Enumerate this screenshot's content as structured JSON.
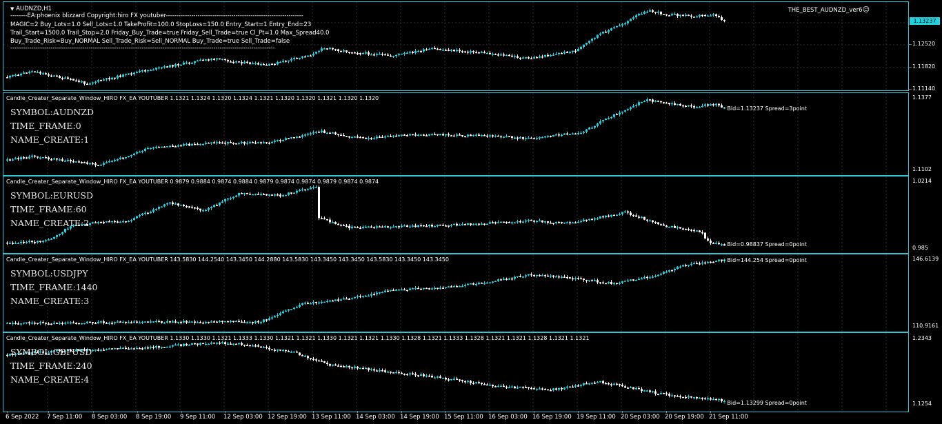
{
  "main_chart": {
    "symbol_title": "AUDNZD,H1",
    "ea_name": "THE_BEST_AUDNZD_ver6",
    "smiley": "☺",
    "info_lines": [
      "--------EA:phoenix blizzard     Copyright:hiro FX youtuber-----------------------------------------------------------------",
      "MAGIC=2   Buy_Lots=1.0   Sell_Lots=1.0   TakeProfit=100.0   StopLoss=150.0   Entry_Start=1   Entry_End=23",
      "Trail_Start=1500.0   Trail_Stop=2.0   Friday_Buy_Trade=true   Friday_Sell_Trade=true   Cl_Pt=1.0   Max_Spread40.0",
      "Buy_Trade_Risk=Buy_NORMAL   Sell_Trade_Risk=Sell_NORMAL   Buy_Trade=true   Sell_Trade=false",
      "-----------------------------------------------------------------------------------------------------------------------------"
    ],
    "price_labels": [
      "1.13237",
      "1.12520",
      "1.11820",
      "1.11140"
    ],
    "current_price": "1.13237",
    "up_color": "#1ed3e2",
    "down_color": "#ffffff",
    "accent_color": "#2fc5d6"
  },
  "sub_windows": [
    {
      "header": "Candle_Creater_Separate_Window_HIRO FX_EA YOUTUBER 1.1321 1.1324 1.1320 1.1324 1.1321 1.1320 1.1320 1.1321 1.1320 1.1320",
      "symbol_label": "SYMBOL:AUDNZD",
      "timeframe_label": "TIME_FRAME:0",
      "name_create_label": "NAME_CREATE:1",
      "bid_text": "Bid=1.13237 Spread=3point",
      "price_max": "1.1377",
      "price_min": "1.1102"
    },
    {
      "header": "Candle_Creater_Separate_Window_HIRO FX_EA YOUTUBER 0.9879 0.9884 0.9874 0.9884 0.9879 0.9874 0.9874 0.9879 0.9874 0.9874",
      "symbol_label": "SYMBOL:EURUSD",
      "timeframe_label": "TIME_FRAME:60",
      "name_create_label": "NAME_CREATE:2",
      "bid_text": "Bid=0.98837 Spread=0point",
      "price_max": "1.0214",
      "price_min": "0.985"
    },
    {
      "header": "Candle_Creater_Separate_Window_HIRO FX_EA YOUTUBER 143.5830 144.2540 143.3450 144.2880 143.5830 143.3450 143.3450 143.5830 143.3450 143.3450",
      "symbol_label": "SYMBOL:USDJPY",
      "timeframe_label": "TIME_FRAME:1440",
      "name_create_label": "NAME_CREATE:3",
      "bid_text": "Bid=144.254 Spread=0point",
      "price_max": "146.6139",
      "price_min": "110.9161"
    },
    {
      "header": "Candle_Creater_Separate_Window_HIRO FX_EA YOUTUBER 1.1330 1.1330 1.1321 1.1333 1.1330 1.1321 1.1321 1.1330 1.1321 1.1321 1.1330 1.1328 1.1321 1.1333 1.1328 1.1321 1.1321 1.1328 1.1321 1.1321",
      "symbol_label": "SYMBOL:GBPUSD",
      "timeframe_label": "TIME_FRAME:240",
      "name_create_label": "NAME_CREATE:4",
      "bid_text": "Bid=1.13299 Spread=0point",
      "price_max": "1.2343",
      "price_min": "1.1254"
    }
  ],
  "time_axis": [
    "6 Sep 2022",
    "7 Sep 11:00",
    "8 Sep 03:00",
    "8 Sep 19:00",
    "9 Sep 11:00",
    "12 Sep 03:00",
    "12 Sep 19:00",
    "13 Sep 11:00",
    "14 Sep 03:00",
    "14 Sep 19:00",
    "15 Sep 11:00",
    "16 Sep 03:00",
    "16 Sep 19:00",
    "19 Sep 11:00",
    "20 Sep 03:00",
    "20 Sep 19:00",
    "21 Sep 11:00"
  ]
}
